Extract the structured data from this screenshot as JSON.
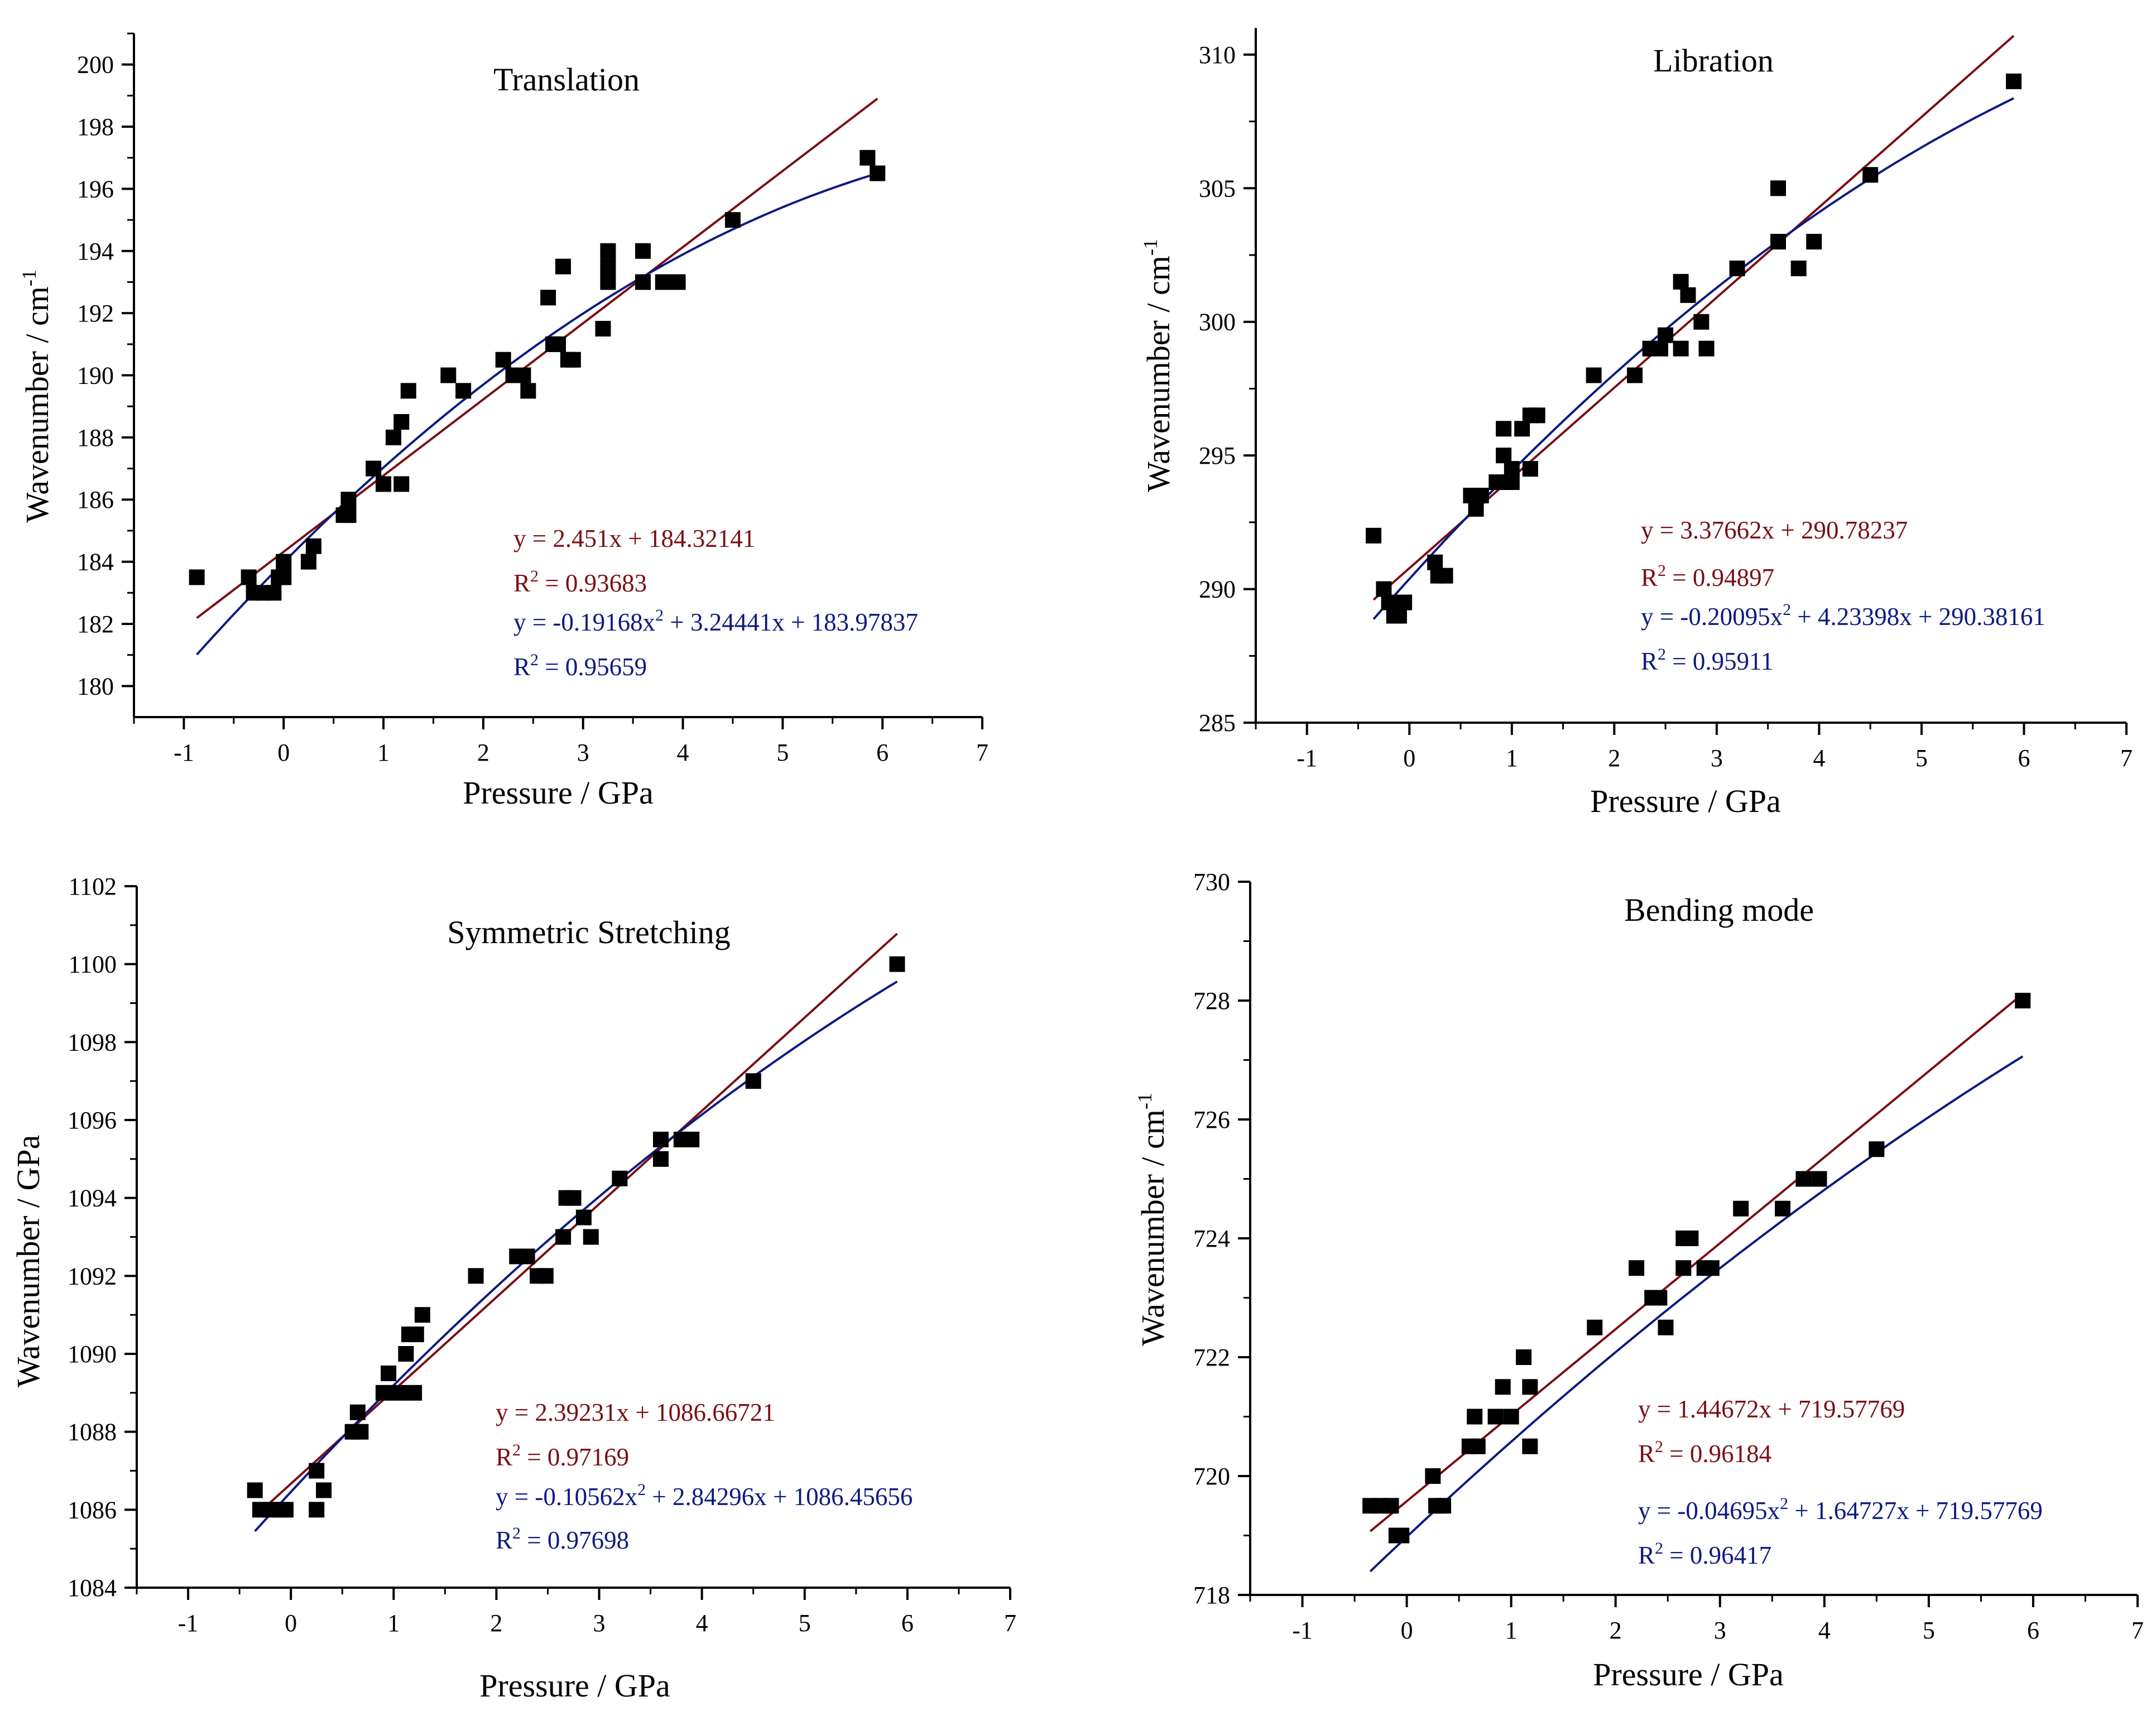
{
  "colors": {
    "marker": "#000000",
    "linear_fit": "#7a0f14",
    "quadratic_fit": "#0b1a80",
    "axis": "#000000"
  },
  "chart_data": [
    {
      "id": "translation",
      "type": "scatter",
      "title": "Translation",
      "xlabel": "Pressure / GPa",
      "ylabel_main": "Wavenumber / cm",
      "ylabel_sup": "-1",
      "xlim": [
        -1.5,
        7
      ],
      "ylim": [
        179,
        201
      ],
      "xticks": [
        -1,
        0,
        1,
        2,
        3,
        4,
        5,
        6,
        7
      ],
      "yticks": [
        180,
        182,
        184,
        186,
        188,
        190,
        192,
        194,
        196,
        198,
        200
      ],
      "points": [
        [
          -0.87,
          183.5
        ],
        [
          -0.35,
          183.5
        ],
        [
          -0.3,
          183
        ],
        [
          -0.2,
          183
        ],
        [
          -0.1,
          183
        ],
        [
          -0.05,
          183.5
        ],
        [
          0.0,
          183.5
        ],
        [
          0.0,
          184
        ],
        [
          0.25,
          184
        ],
        [
          0.3,
          184.5
        ],
        [
          0.6,
          185.5
        ],
        [
          0.65,
          185.5
        ],
        [
          0.65,
          186
        ],
        [
          0.9,
          187
        ],
        [
          1.0,
          186.5
        ],
        [
          1.1,
          188
        ],
        [
          1.18,
          188.5
        ],
        [
          1.18,
          186.5
        ],
        [
          1.25,
          189.5
        ],
        [
          1.65,
          190
        ],
        [
          1.8,
          189.5
        ],
        [
          2.2,
          190.5
        ],
        [
          2.3,
          190
        ],
        [
          2.4,
          190
        ],
        [
          2.45,
          189.5
        ],
        [
          2.65,
          192.5
        ],
        [
          2.7,
          191
        ],
        [
          2.75,
          191
        ],
        [
          2.8,
          193.5
        ],
        [
          2.85,
          190.5
        ],
        [
          2.9,
          190.5
        ],
        [
          3.2,
          191.5
        ],
        [
          3.25,
          193
        ],
        [
          3.25,
          193.5
        ],
        [
          3.25,
          194
        ],
        [
          3.6,
          193
        ],
        [
          3.6,
          194
        ],
        [
          3.8,
          193
        ],
        [
          3.95,
          193
        ],
        [
          4.5,
          195
        ],
        [
          5.85,
          197
        ],
        [
          5.95,
          196.5
        ]
      ],
      "linear": {
        "slope": 2.451,
        "intercept": 184.32141,
        "range": [
          -0.87,
          5.95
        ]
      },
      "quadratic": {
        "a": -0.19168,
        "b": 3.24441,
        "c": 183.97837,
        "range": [
          -0.87,
          5.95
        ]
      },
      "annotations": {
        "lin_eq": "y = 2.451x + 184.32141",
        "lin_r2_prefix": "R",
        "lin_r2_value": " = 0.93683",
        "quad_eq_prefix": "y = -0.19168x",
        "quad_eq_suffix": " + 3.24441x + 183.97837",
        "quad_r2_prefix": "R",
        "quad_r2_value": " = 0.95659",
        "sup2": "2"
      }
    },
    {
      "id": "libration",
      "type": "scatter",
      "title": "Libration",
      "xlabel": "Pressure / GPa",
      "ylabel_main": "Wavenumber / cm",
      "ylabel_sup": "-1",
      "xlim": [
        -1.5,
        7
      ],
      "ylim": [
        285,
        311
      ],
      "xticks": [
        -1,
        0,
        1,
        2,
        3,
        4,
        5,
        6,
        7
      ],
      "yticks": [
        285,
        290,
        295,
        300,
        305,
        310
      ],
      "points": [
        [
          -0.35,
          292
        ],
        [
          -0.25,
          290
        ],
        [
          -0.2,
          289.5
        ],
        [
          -0.15,
          289
        ],
        [
          -0.1,
          289
        ],
        [
          -0.05,
          289.5
        ],
        [
          0.25,
          291
        ],
        [
          0.28,
          290.5
        ],
        [
          0.35,
          290.5
        ],
        [
          0.6,
          293.5
        ],
        [
          0.65,
          293
        ],
        [
          0.7,
          293.5
        ],
        [
          0.85,
          294
        ],
        [
          0.92,
          296
        ],
        [
          0.92,
          295
        ],
        [
          1.0,
          294
        ],
        [
          1.0,
          294.5
        ],
        [
          1.1,
          296
        ],
        [
          1.18,
          296.5
        ],
        [
          1.18,
          294.5
        ],
        [
          1.25,
          296.5
        ],
        [
          1.8,
          298
        ],
        [
          2.2,
          298
        ],
        [
          2.35,
          299
        ],
        [
          2.45,
          299
        ],
        [
          2.5,
          299.5
        ],
        [
          2.65,
          299
        ],
        [
          2.65,
          301.5
        ],
        [
          2.72,
          301
        ],
        [
          2.85,
          300
        ],
        [
          2.9,
          299
        ],
        [
          3.2,
          302
        ],
        [
          3.6,
          303
        ],
        [
          3.6,
          305
        ],
        [
          3.8,
          302
        ],
        [
          3.95,
          303
        ],
        [
          4.5,
          305.5
        ],
        [
          5.9,
          309
        ]
      ],
      "linear": {
        "slope": 3.37662,
        "intercept": 290.78237,
        "range": [
          -0.35,
          5.9
        ]
      },
      "quadratic": {
        "a": -0.20095,
        "b": 4.23398,
        "c": 290.38161,
        "range": [
          -0.35,
          5.9
        ]
      },
      "annotations": {
        "lin_eq": "y = 3.37662x + 290.78237",
        "lin_r2_prefix": "R",
        "lin_r2_value": " = 0.94897",
        "quad_eq_prefix": "y = -0.20095x",
        "quad_eq_suffix": " + 4.23398x + 290.38161",
        "quad_r2_prefix": "R",
        "quad_r2_value": " = 0.95911",
        "sup2": "2"
      }
    },
    {
      "id": "symmetric-stretching",
      "type": "scatter",
      "title": "Symmetric Stretching",
      "xlabel": "Pressure / GPa",
      "ylabel_main": "Wavenumber / GPa",
      "ylabel_sup": "",
      "xlim": [
        -1.5,
        7
      ],
      "ylim": [
        1084,
        1102
      ],
      "xticks": [
        -1,
        0,
        1,
        2,
        3,
        4,
        5,
        6,
        7
      ],
      "yticks": [
        1084,
        1086,
        1088,
        1090,
        1092,
        1094,
        1096,
        1098,
        1100,
        1102
      ],
      "points": [
        [
          -0.35,
          1086.5
        ],
        [
          -0.3,
          1086
        ],
        [
          -0.2,
          1086
        ],
        [
          -0.1,
          1086
        ],
        [
          -0.05,
          1086
        ],
        [
          0.25,
          1087
        ],
        [
          0.25,
          1086
        ],
        [
          0.32,
          1086.5
        ],
        [
          0.6,
          1088
        ],
        [
          0.65,
          1088.5
        ],
        [
          0.68,
          1088
        ],
        [
          0.9,
          1089
        ],
        [
          0.95,
          1089.5
        ],
        [
          1.05,
          1089
        ],
        [
          1.12,
          1090
        ],
        [
          1.15,
          1090.5
        ],
        [
          1.2,
          1089
        ],
        [
          1.22,
          1090.5
        ],
        [
          1.28,
          1091
        ],
        [
          1.8,
          1092
        ],
        [
          2.2,
          1092.5
        ],
        [
          2.3,
          1092.5
        ],
        [
          2.4,
          1092
        ],
        [
          2.48,
          1092
        ],
        [
          2.65,
          1093
        ],
        [
          2.68,
          1094
        ],
        [
          2.75,
          1094
        ],
        [
          2.85,
          1093.5
        ],
        [
          2.92,
          1093
        ],
        [
          3.2,
          1094.5
        ],
        [
          3.6,
          1095
        ],
        [
          3.6,
          1095.5
        ],
        [
          3.8,
          1095.5
        ],
        [
          3.9,
          1095.5
        ],
        [
          4.5,
          1097
        ],
        [
          5.9,
          1100
        ]
      ],
      "linear": {
        "slope": 2.39231,
        "intercept": 1086.66721,
        "range": [
          -0.35,
          5.9
        ]
      },
      "quadratic": {
        "a": -0.10562,
        "b": 2.84296,
        "c": 1086.45656,
        "range": [
          -0.35,
          5.9
        ]
      },
      "annotations": {
        "lin_eq": "y = 2.39231x + 1086.66721",
        "lin_r2_prefix": "R",
        "lin_r2_value": " = 0.97169",
        "quad_eq_prefix": "y = -0.10562x",
        "quad_eq_suffix": " + 2.84296x + 1086.45656",
        "quad_r2_prefix": "R",
        "quad_r2_value": " = 0.97698",
        "sup2": "2"
      }
    },
    {
      "id": "bending-mode",
      "type": "scatter",
      "title": "Bending mode",
      "xlabel": "Pressure / GPa",
      "ylabel_main": "Wavenumber / cm",
      "ylabel_sup": "-1",
      "xlim": [
        -1.5,
        7
      ],
      "ylim": [
        718,
        730
      ],
      "xticks": [
        -1,
        0,
        1,
        2,
        3,
        4,
        5,
        6,
        7
      ],
      "yticks": [
        718,
        720,
        722,
        724,
        726,
        728,
        730
      ],
      "points": [
        [
          -0.35,
          719.5
        ],
        [
          -0.25,
          719.5
        ],
        [
          -0.15,
          719.5
        ],
        [
          -0.1,
          719
        ],
        [
          -0.05,
          719
        ],
        [
          0.25,
          720
        ],
        [
          0.28,
          719.5
        ],
        [
          0.35,
          719.5
        ],
        [
          0.6,
          720.5
        ],
        [
          0.65,
          721
        ],
        [
          0.68,
          720.5
        ],
        [
          0.85,
          721
        ],
        [
          0.92,
          721.5
        ],
        [
          1.0,
          721
        ],
        [
          1.12,
          722
        ],
        [
          1.18,
          721.5
        ],
        [
          1.18,
          720.5
        ],
        [
          1.8,
          722.5
        ],
        [
          2.2,
          723.5
        ],
        [
          2.35,
          723
        ],
        [
          2.42,
          723
        ],
        [
          2.48,
          722.5
        ],
        [
          2.65,
          723.5
        ],
        [
          2.65,
          724
        ],
        [
          2.72,
          724
        ],
        [
          2.85,
          723.5
        ],
        [
          2.92,
          723.5
        ],
        [
          3.2,
          724.5
        ],
        [
          3.6,
          724.5
        ],
        [
          3.8,
          725
        ],
        [
          3.95,
          725
        ],
        [
          4.5,
          725.5
        ],
        [
          5.9,
          728
        ]
      ],
      "linear": {
        "slope": 1.44672,
        "intercept": 719.57769,
        "range": [
          -0.35,
          5.9
        ]
      },
      "quadratic": {
        "a": -0.04695,
        "b": 1.64727,
        "c": 719.57769,
        "offset": -0.6,
        "range": [
          -0.35,
          5.9
        ]
      },
      "annotations": {
        "lin_eq": "y = 1.44672x + 719.57769",
        "lin_r2_prefix": "R",
        "lin_r2_value": " = 0.96184",
        "quad_eq_prefix": "y = -0.04695x",
        "quad_eq_suffix": " + 1.64727x + 719.57769",
        "quad_r2_prefix": "R",
        "quad_r2_value": " = 0.96417",
        "sup2": "2"
      }
    }
  ]
}
